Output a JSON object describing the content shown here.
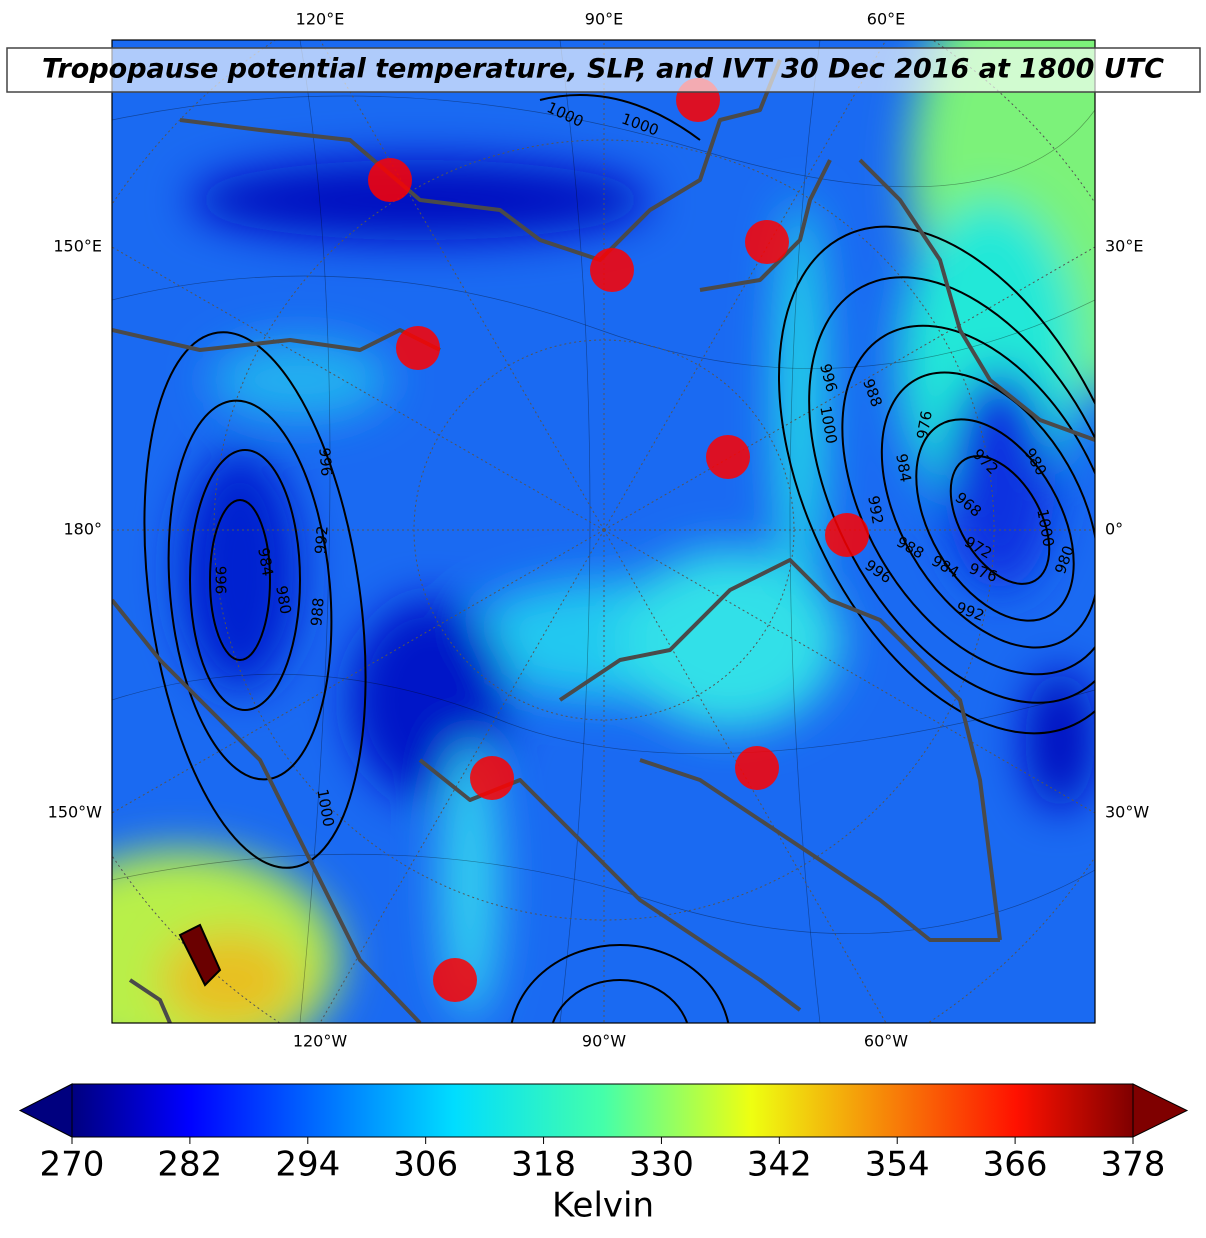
{
  "title": "Tropopause potential temperature, SLP, and IVT 30 Dec 2016 at 1800 UTC",
  "map": {
    "lon_labels_top": [
      "120°E",
      "90°E",
      "60°E"
    ],
    "lon_labels_bottom": [
      "120°W",
      "90°W",
      "60°W"
    ],
    "lon_labels_left": [
      "150°E",
      "180°",
      "150°W"
    ],
    "lon_labels_right": [
      "30°E",
      "0°",
      "30°W"
    ],
    "contour_labels": [
      1000,
      1000,
      996,
      1000,
      988,
      976,
      984,
      972,
      980,
      992,
      988,
      968,
      984,
      972,
      976,
      996,
      992,
      980,
      1000,
      996,
      992,
      988,
      984,
      980,
      996,
      1000
    ]
  },
  "colorbar": {
    "label": "Kelvin",
    "lim": [
      270,
      378
    ],
    "ticks": [
      270,
      282,
      294,
      306,
      318,
      330,
      342,
      354,
      366,
      378
    ]
  }
}
